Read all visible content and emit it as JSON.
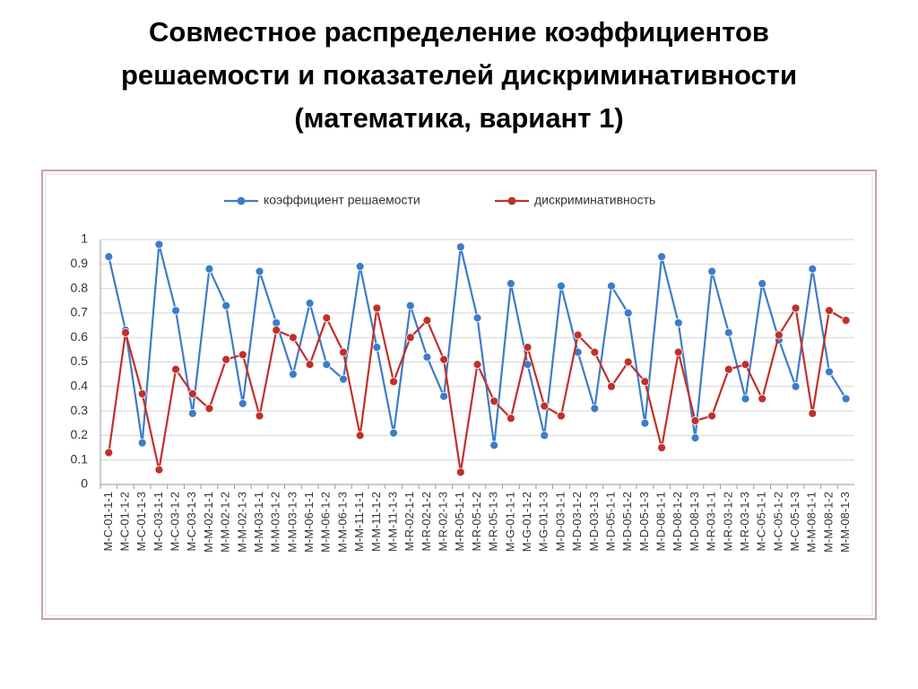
{
  "chart_data": {
    "type": "line",
    "title": [
      "Совместное  распределение коэффициентов",
      "решаемости и показателей дискриминативности",
      "(математика, вариант 1)"
    ],
    "categories": [
      "M-C-01-1-1",
      "M-C-01-1-2",
      "M-C-01-1-3",
      "M-C-03-1-1",
      "M-C-03-1-2",
      "M-C-03-1-3",
      "M-M-02-1-1",
      "M-M-02-1-2",
      "M-M-02-1-3",
      "M-M-03-1-1",
      "M-M-03-1-2",
      "M-M-03-1-3",
      "M-M-06-1-1",
      "M-M-06-1-2",
      "M-M-06-1-3",
      "M-M-11-1-1",
      "M-M-11-1-2",
      "M-M-11-1-3",
      "M-R-02-1-1",
      "M-R-02-1-2",
      "M-R-02-1-3",
      "M-R-05-1-1",
      "M-R-05-1-2",
      "M-R-05-1-3",
      "M-G-01-1-1",
      "M-G-01-1-2",
      "M-G-01-1-3",
      "M-D-03-1-1",
      "M-D-03-1-2",
      "M-D-03-1-3",
      "M-D-05-1-1",
      "M-D-05-1-2",
      "M-D-05-1-3",
      "M-D-08-1-1",
      "M-D-08-1-2",
      "M-D-08-1-3",
      "M-R-03-1-1",
      "M-R-03-1-2",
      "M-R-03-1-3",
      "M-C-05-1-1",
      "M-C-05-1-2",
      "M-C-05-1-3",
      "M-M-08-1-1",
      "M-M-08-1-2",
      "M-M-08-1-3"
    ],
    "series": [
      {
        "name": "коэффициент решаемости",
        "color": "#3d7cc9",
        "values": [
          0.93,
          0.63,
          0.17,
          0.98,
          0.71,
          0.29,
          0.88,
          0.73,
          0.33,
          0.87,
          0.66,
          0.45,
          0.74,
          0.49,
          0.43,
          0.89,
          0.56,
          0.21,
          0.73,
          0.52,
          0.36,
          0.97,
          0.68,
          0.16,
          0.82,
          0.49,
          0.2,
          0.81,
          0.54,
          0.31,
          0.81,
          0.7,
          0.25,
          0.93,
          0.66,
          0.19,
          0.87,
          0.62,
          0.35,
          0.82,
          0.59,
          0.4,
          0.88,
          0.46,
          0.35
        ]
      },
      {
        "name": "дискриминативность",
        "color": "#c0302b",
        "values": [
          0.13,
          0.62,
          0.37,
          0.06,
          0.47,
          0.37,
          0.31,
          0.51,
          0.53,
          0.28,
          0.63,
          0.6,
          0.49,
          0.68,
          0.54,
          0.2,
          0.72,
          0.42,
          0.6,
          0.67,
          0.51,
          0.05,
          0.49,
          0.34,
          0.27,
          0.56,
          0.32,
          0.28,
          0.61,
          0.54,
          0.4,
          0.5,
          0.42,
          0.15,
          0.54,
          0.26,
          0.28,
          0.47,
          0.49,
          0.35,
          0.61,
          0.72,
          0.29,
          0.71,
          0.67
        ]
      }
    ],
    "ylim": [
      0,
      1
    ],
    "yticks": [
      0,
      0.1,
      0.2,
      0.3,
      0.4,
      0.5,
      0.6,
      0.7,
      0.8,
      0.9,
      1
    ],
    "grid": true,
    "legend": "top"
  }
}
